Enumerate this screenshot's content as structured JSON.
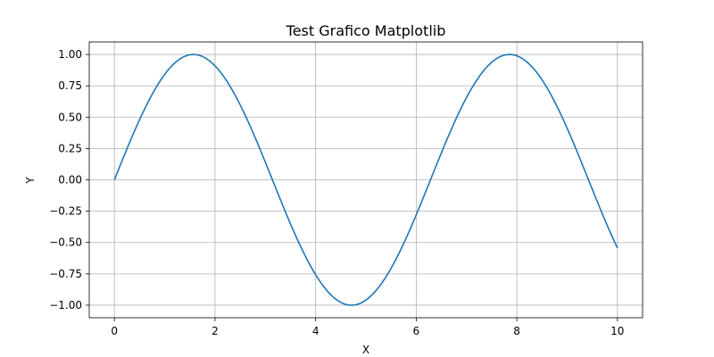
{
  "chart_data": {
    "type": "line",
    "title": "Test Grafico Matplotlib",
    "xlabel": "X",
    "ylabel": "Y",
    "xlim": [
      -0.5,
      10.5
    ],
    "ylim": [
      -1.1,
      1.1
    ],
    "grid": true,
    "x_ticks": [
      0,
      2,
      4,
      6,
      8,
      10
    ],
    "x_tick_labels": [
      "0",
      "2",
      "4",
      "6",
      "8",
      "10"
    ],
    "y_ticks": [
      1.0,
      0.75,
      0.5,
      0.25,
      0.0,
      -0.25,
      -0.5,
      -0.75,
      -1.0
    ],
    "y_tick_labels": [
      "1.00",
      "0.75",
      "0.50",
      "0.25",
      "0.00",
      "−0.25",
      "−0.50",
      "−0.75",
      "−1.00"
    ],
    "series": [
      {
        "color": "#1f77b4",
        "x": [
          0,
          0.5,
          1,
          1.5,
          1.5708,
          2,
          2.5,
          3,
          3.1416,
          3.5,
          4,
          4.5,
          4.7124,
          5,
          5.5,
          6,
          6.2832,
          6.5,
          7,
          7.5,
          7.854,
          8,
          8.5,
          9,
          9.4248,
          9.5,
          10
        ],
        "y": [
          0,
          0.479,
          0.841,
          0.997,
          1.0,
          0.909,
          0.598,
          0.141,
          0.0,
          -0.351,
          -0.757,
          -0.978,
          -1.0,
          -0.959,
          -0.706,
          -0.279,
          0.0,
          0.215,
          0.657,
          0.938,
          1.0,
          0.989,
          0.798,
          0.412,
          0.0,
          -0.075,
          -0.544
        ]
      }
    ]
  }
}
